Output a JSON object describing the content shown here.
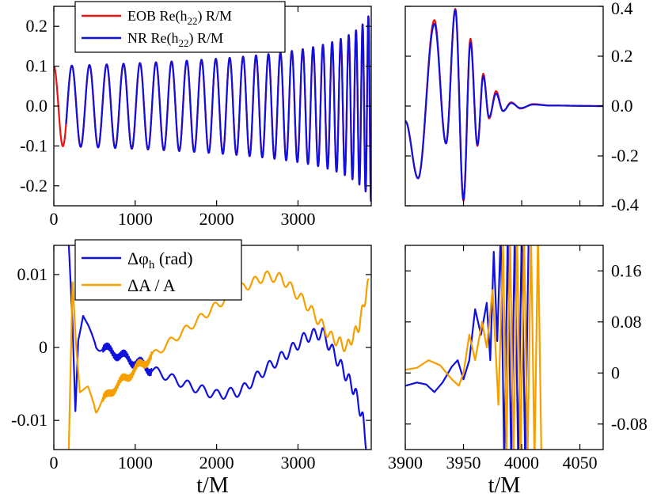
{
  "colors": {
    "eob": "#ee1111",
    "nr": "#1111dd",
    "phase": "#1111dd",
    "amp": "#f5a000"
  },
  "chart_data": [
    {
      "id": "top-left",
      "type": "line",
      "xlim": [
        0,
        3900
      ],
      "ylim": [
        -0.25,
        0.25
      ],
      "xticks": [
        0,
        1000,
        2000,
        3000
      ],
      "xticklabels": [
        "0",
        "1000",
        "2000",
        "3000"
      ],
      "yticks": [
        -0.2,
        -0.1,
        0.0,
        0.1,
        0.2
      ],
      "yticklabels": [
        "-0.2",
        "-0.1",
        "0.0",
        "0.1",
        "0.2"
      ],
      "ytick_side": "left",
      "legend": {
        "placement": "top-center",
        "entries": [
          {
            "key": "eob",
            "pre": "EOB Re(h",
            "sub": "22",
            "post": ") R/M"
          },
          {
            "key": "nr",
            "pre": "NR Re(h",
            "sub": "22",
            "post": ") R/M"
          }
        ]
      },
      "series": [
        {
          "name": "EOB Re(h22) R/M",
          "color_key": "eob",
          "model": "strain_inspiral",
          "t_start": 0,
          "t_end": 3900,
          "amp0": 0.1,
          "amp_end": 0.24,
          "omega0": 0.0281
        },
        {
          "name": "NR Re(h22) R/M",
          "color_key": "nr",
          "model": "strain_inspiral",
          "t_start": 150,
          "t_end": 3900,
          "amp0": 0.1,
          "amp_end": 0.24,
          "omega0": 0.0281
        }
      ]
    },
    {
      "id": "top-right",
      "type": "line",
      "xlim": [
        3900,
        4070
      ],
      "ylim": [
        -0.4,
        0.4
      ],
      "yticks": [
        -0.4,
        -0.2,
        0.0,
        0.2,
        0.4
      ],
      "yticklabels": [
        "-0.4",
        "-0.2",
        "0.0",
        "0.2",
        "0.4"
      ],
      "ytick_side": "right",
      "series": [
        {
          "name": "EOB Re(h22) R/M",
          "color_key": "eob",
          "peaks": [
            [
              3900,
              -0.06
            ],
            [
              3911,
              -0.29
            ],
            [
              3925,
              0.345
            ],
            [
              3935,
              -0.15
            ],
            [
              3943,
              0.39
            ],
            [
              3950,
              -0.38
            ],
            [
              3956,
              0.27
            ],
            [
              3962,
              -0.16
            ],
            [
              3967,
              0.13
            ],
            [
              3972,
              -0.05
            ],
            [
              3978,
              0.06
            ],
            [
              3984,
              -0.02
            ],
            [
              3991,
              0.015
            ],
            [
              3999,
              -0.01
            ],
            [
              4010,
              0.008
            ],
            [
              4025,
              0.002
            ],
            [
              4070,
              0.0
            ]
          ]
        },
        {
          "name": "NR Re(h22) R/M",
          "color_key": "nr",
          "peaks": [
            [
              3900,
              -0.06
            ],
            [
              3911,
              -0.29
            ],
            [
              3925,
              0.33
            ],
            [
              3935,
              -0.15
            ],
            [
              3943,
              0.385
            ],
            [
              3950,
              -0.375
            ],
            [
              3956,
              0.255
            ],
            [
              3962,
              -0.155
            ],
            [
              3967,
              0.12
            ],
            [
              3972,
              -0.045
            ],
            [
              3978,
              0.05
            ],
            [
              3984,
              -0.02
            ],
            [
              3991,
              0.012
            ],
            [
              3999,
              -0.008
            ],
            [
              4010,
              0.006
            ],
            [
              4025,
              0.002
            ],
            [
              4070,
              0.0
            ]
          ]
        }
      ]
    },
    {
      "id": "bottom-left",
      "type": "line",
      "xlim": [
        0,
        3900
      ],
      "ylim": [
        -0.014,
        0.014
      ],
      "xticks": [
        0,
        1000,
        2000,
        3000
      ],
      "xticklabels": [
        "0",
        "1000",
        "2000",
        "3000"
      ],
      "yticks": [
        -0.01,
        0,
        0.01
      ],
      "yticklabels": [
        "-0.01",
        "0",
        "0.01"
      ],
      "ytick_side": "left",
      "xlabel": "t/M",
      "legend": {
        "placement": "top-left",
        "entries": [
          {
            "key": "phase",
            "pre": "Δφ",
            "sub": "h",
            "post": " (rad)"
          },
          {
            "key": "amp",
            "pre": "ΔA / A",
            "sub": "",
            "post": ""
          }
        ]
      },
      "series": [
        {
          "name": "Δφh (rad)",
          "color_key": "phase",
          "trend": [
            [
              180,
              0.015
            ],
            [
              230,
              0.003
            ],
            [
              265,
              -0.009
            ],
            [
              300,
              0.001
            ],
            [
              360,
              0.0045
            ],
            [
              420,
              0.003
            ],
            [
              520,
              0.0002
            ],
            [
              700,
              -0.0005
            ],
            [
              900,
              -0.0015
            ],
            [
              1200,
              -0.003
            ],
            [
              1600,
              -0.005
            ],
            [
              2000,
              -0.0065
            ],
            [
              2300,
              -0.006
            ],
            [
              2600,
              -0.003
            ],
            [
              2900,
              -0.0005
            ],
            [
              3100,
              0.0015
            ],
            [
              3300,
              0.002
            ],
            [
              3500,
              -0.002
            ],
            [
              3700,
              -0.006
            ],
            [
              3800,
              -0.01
            ],
            [
              3870,
              -0.016
            ]
          ],
          "osc_amp": 0.0009
        },
        {
          "name": "ΔA / A",
          "color_key": "amp",
          "trend": [
            [
              180,
              -0.016
            ],
            [
              230,
              0.009
            ],
            [
              270,
              0.001
            ],
            [
              320,
              -0.006
            ],
            [
              420,
              -0.0055
            ],
            [
              520,
              -0.0085
            ],
            [
              700,
              -0.006
            ],
            [
              1000,
              -0.003
            ],
            [
              1400,
              0.0005
            ],
            [
              1800,
              0.004
            ],
            [
              2200,
              0.0075
            ],
            [
              2600,
              0.0098
            ],
            [
              2800,
              0.0095
            ],
            [
              3100,
              0.006
            ],
            [
              3400,
              0.0015
            ],
            [
              3600,
              0.0
            ],
            [
              3750,
              0.003
            ],
            [
              3870,
              0.009
            ]
          ],
          "osc_amp": 0.0008
        }
      ]
    },
    {
      "id": "bottom-right",
      "type": "line",
      "xlim": [
        3900,
        4070
      ],
      "ylim": [
        -0.12,
        0.2
      ],
      "xticks": [
        3900,
        3950,
        4000,
        4050
      ],
      "xticklabels": [
        "3900",
        "3950",
        "4000",
        "4050"
      ],
      "yticks": [
        -0.08,
        0,
        0.08,
        0.16
      ],
      "yticklabels": [
        "-0.08",
        "0",
        "0.08",
        "0.16"
      ],
      "ytick_side": "right",
      "xlabel": "t/M",
      "series": [
        {
          "name": "Δφh (rad)",
          "color_key": "phase",
          "points": [
            [
              3900,
              -0.02
            ],
            [
              3910,
              -0.015
            ],
            [
              3918,
              -0.018
            ],
            [
              3925,
              -0.03
            ],
            [
              3932,
              -0.015
            ],
            [
              3940,
              0.01
            ],
            [
              3945,
              0.02
            ],
            [
              3950,
              -0.01
            ],
            [
              3955,
              0.02
            ],
            [
              3960,
              0.1
            ],
            [
              3965,
              0.06
            ],
            [
              3970,
              0.11
            ],
            [
              3973,
              0.02
            ],
            [
              3976,
              0.19
            ],
            [
              3979,
              0.05
            ],
            [
              3982,
              0.22
            ],
            [
              3985,
              -0.14
            ],
            [
              3988,
              0.22
            ],
            [
              3991,
              -0.14
            ],
            [
              3994,
              0.22
            ],
            [
              3997,
              -0.14
            ],
            [
              4000,
              0.22
            ],
            [
              4003,
              -0.14
            ],
            [
              4006,
              0.22
            ]
          ]
        },
        {
          "name": "ΔA / A",
          "color_key": "amp",
          "points": [
            [
              3900,
              0.005
            ],
            [
              3910,
              0.008
            ],
            [
              3920,
              0.02
            ],
            [
              3930,
              0.012
            ],
            [
              3940,
              -0.01
            ],
            [
              3946,
              -0.02
            ],
            [
              3950,
              0.0
            ],
            [
              3955,
              0.06
            ],
            [
              3960,
              0.02
            ],
            [
              3966,
              0.08
            ],
            [
              3970,
              0.04
            ],
            [
              3975,
              0.13
            ],
            [
              3980,
              -0.05
            ],
            [
              3984,
              0.2
            ],
            [
              3987,
              -0.12
            ],
            [
              3990,
              0.22
            ],
            [
              3993,
              -0.14
            ],
            [
              3996,
              0.22
            ],
            [
              3999,
              -0.14
            ],
            [
              4002,
              0.22
            ],
            [
              4005,
              -0.14
            ],
            [
              4008,
              0.22
            ],
            [
              4011,
              -0.14
            ],
            [
              4014,
              0.22
            ],
            [
              4017,
              -0.14
            ]
          ]
        }
      ]
    }
  ]
}
